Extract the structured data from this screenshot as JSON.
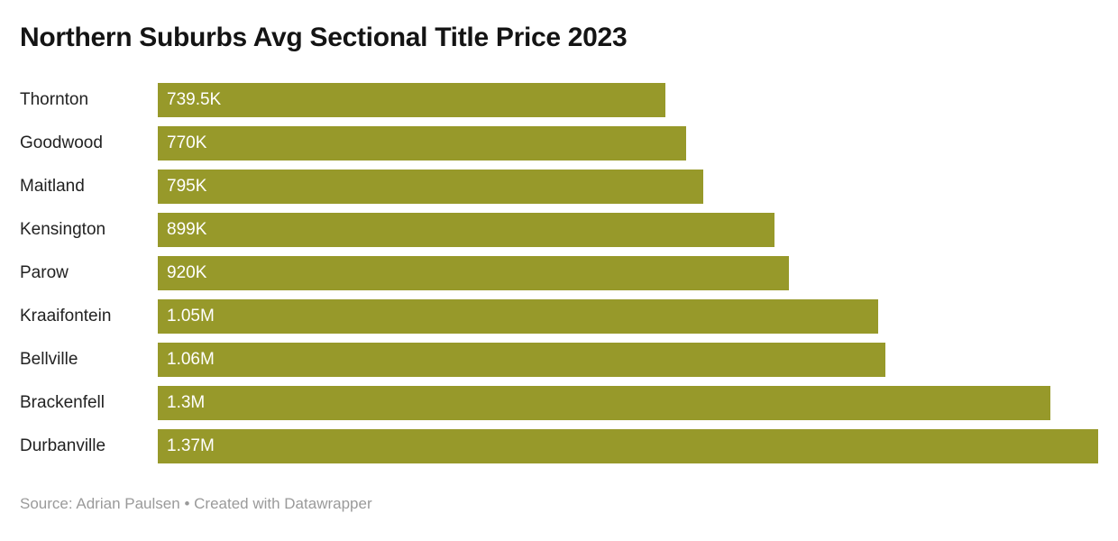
{
  "title": "Northern Suburbs Avg Sectional Title Price 2023",
  "footer": {
    "source_label": "Source:",
    "source_name": "Adrian Paulsen",
    "separator": "•",
    "attribution": "Created with Datawrapper"
  },
  "colors": {
    "background": "#ffffff",
    "bar": "#97992a",
    "title": "#141414",
    "category": "#222222",
    "value": "#ffffff",
    "footer": "#9a9a9a"
  },
  "chart_data": {
    "type": "bar",
    "orientation": "horizontal",
    "title": "Northern Suburbs Avg Sectional Title Price 2023",
    "categories": [
      "Thornton",
      "Goodwood",
      "Maitland",
      "Kensington",
      "Parow",
      "Kraaifontein",
      "Bellville",
      "Brackenfell",
      "Durbanville"
    ],
    "values": [
      739500,
      770000,
      795000,
      899000,
      920000,
      1050000,
      1060000,
      1300000,
      1370000
    ],
    "value_labels": [
      "739.5K",
      "770K",
      "795K",
      "899K",
      "920K",
      "1.05M",
      "1.06M",
      "1.3M",
      "1.37M"
    ],
    "xlabel": "",
    "ylabel": "",
    "xlim": [
      0,
      1370000
    ],
    "grid": false,
    "legend": false,
    "value_label_position": "inside-left",
    "sort_order": "ascending"
  }
}
